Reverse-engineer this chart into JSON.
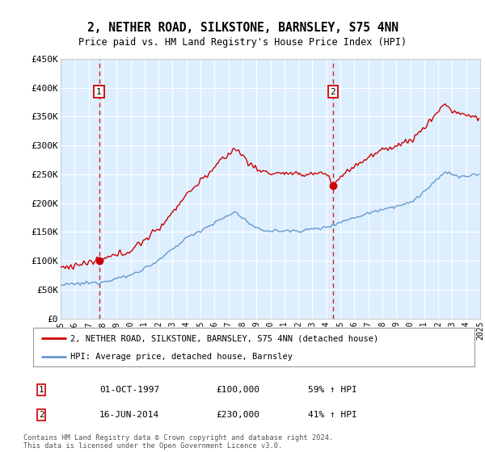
{
  "title": "2, NETHER ROAD, SILKSTONE, BARNSLEY, S75 4NN",
  "subtitle": "Price paid vs. HM Land Registry's House Price Index (HPI)",
  "legend_line1": "2, NETHER ROAD, SILKSTONE, BARNSLEY, S75 4NN (detached house)",
  "legend_line2": "HPI: Average price, detached house, Barnsley",
  "table_rows": [
    {
      "num": "1",
      "date": "01-OCT-1997",
      "price": "£100,000",
      "hpi": "59% ↑ HPI"
    },
    {
      "num": "2",
      "date": "16-JUN-2014",
      "price": "£230,000",
      "hpi": "41% ↑ HPI"
    }
  ],
  "footnote": "Contains HM Land Registry data © Crown copyright and database right 2024.\nThis data is licensed under the Open Government Licence v3.0.",
  "ylim": [
    0,
    450000
  ],
  "yticks": [
    0,
    50000,
    100000,
    150000,
    200000,
    250000,
    300000,
    350000,
    400000,
    450000
  ],
  "ytick_labels": [
    "£0",
    "£50K",
    "£100K",
    "£150K",
    "£200K",
    "£250K",
    "£300K",
    "£350K",
    "£400K",
    "£450K"
  ],
  "sale1_year": 1997.75,
  "sale1_price": 100000,
  "sale2_year": 2014.46,
  "sale2_price": 230000,
  "hpi_color": "#6699cc",
  "sale_color": "#cc0000",
  "vline_color": "#cc2222",
  "plot_bg": "#ddeeff",
  "grid_color": "#ffffff",
  "xmin": 1995,
  "xmax": 2025
}
